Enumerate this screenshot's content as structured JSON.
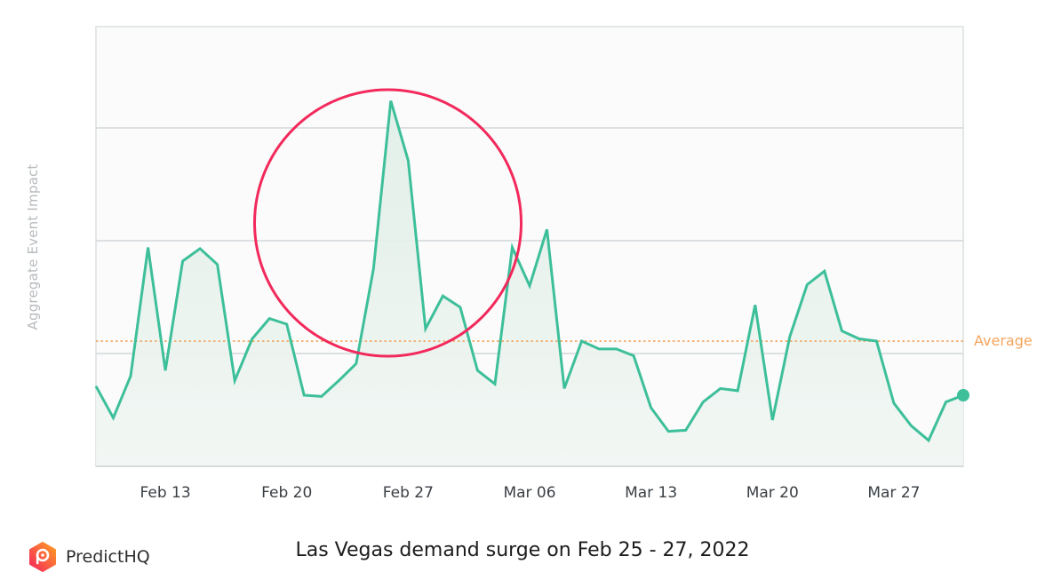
{
  "chart_data": {
    "type": "area",
    "title": "Las Vegas demand surge on Feb 25 - 27, 2022",
    "xlabel": "",
    "ylabel": "Aggregate Event Impact",
    "y_tick_labels_visible": false,
    "grid": true,
    "legend": null,
    "x_start_date": "Feb 09",
    "x_end_date": "Mar 31",
    "x_tick_labels": [
      "Feb 13",
      "Feb 20",
      "Feb 27",
      "Mar 06",
      "Mar 13",
      "Mar 20",
      "Mar 27"
    ],
    "ylim": [
      0,
      3.9
    ],
    "gridlines": [
      1,
      2,
      3
    ],
    "values_note": "Relative units (gridline spacing = 1); absolute scale not shown",
    "series": [
      {
        "name": "Aggregate Event Impact",
        "color": "#3dbf9a",
        "values": [
          0.71,
          0.43,
          0.8,
          1.94,
          0.85,
          1.82,
          1.93,
          1.79,
          0.76,
          1.13,
          1.31,
          1.26,
          0.63,
          0.62,
          0.76,
          0.91,
          1.75,
          3.24,
          2.71,
          1.22,
          1.51,
          1.41,
          0.85,
          0.73,
          1.94,
          1.6,
          2.1,
          0.69,
          1.11,
          1.04,
          1.04,
          0.98,
          0.52,
          0.31,
          0.32,
          0.57,
          0.69,
          0.67,
          1.43,
          0.41,
          1.15,
          1.61,
          1.73,
          1.2,
          1.13,
          1.11,
          0.56,
          0.36,
          0.23,
          0.57,
          0.63
        ]
      }
    ],
    "reference_lines": [
      {
        "label": "Average",
        "value": 1.11,
        "color": "#f5a45d",
        "style": "dotted"
      }
    ],
    "annotations": [
      {
        "type": "circle",
        "around": "Feb 25 - 27",
        "color": "#f2295b"
      }
    ]
  },
  "axis": {
    "y_title": "Aggregate Event Impact",
    "x_ticks": [
      "Feb 13",
      "Feb 20",
      "Feb 27",
      "Mar 06",
      "Mar 13",
      "Mar 20",
      "Mar 27"
    ]
  },
  "reference": {
    "average_label": "Average"
  },
  "caption": "Las Vegas demand surge on Feb 25 - 27, 2022",
  "brand": {
    "name": "PredictHQ"
  },
  "colors": {
    "line": "#3dbf9a",
    "average": "#f5a45d",
    "highlight": "#f2295b",
    "grid": "#d3d7da",
    "plot_bg": "#fbfbfb"
  }
}
